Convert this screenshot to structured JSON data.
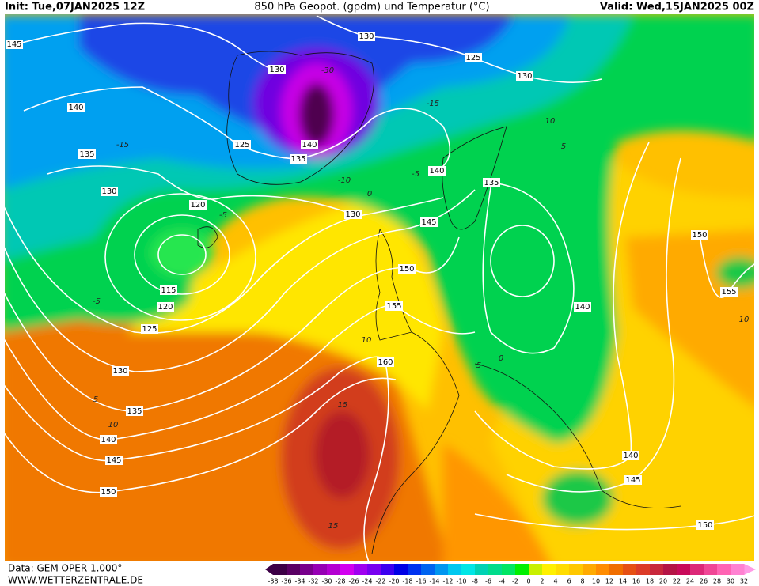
{
  "header": {
    "init": "Init: Tue,07JAN2025 12Z",
    "title": "850 hPa Geopot. (gpdm) und Temperatur (°C)",
    "valid": "Valid: Wed,15JAN2025 00Z"
  },
  "map": {
    "geopotential_labels": [
      145,
      140,
      135,
      130,
      120,
      115,
      120,
      125,
      130,
      135,
      140,
      145,
      150,
      130,
      125,
      140,
      135,
      130,
      125,
      130,
      140,
      135,
      130,
      145,
      150,
      155,
      160,
      140,
      150,
      155,
      140,
      145,
      150
    ],
    "temperature_labels": [
      -30,
      -15,
      -15,
      -10,
      -5,
      -5,
      0,
      5,
      10,
      -5,
      5,
      10,
      10,
      15,
      15,
      10,
      5,
      0
    ]
  },
  "footer": {
    "data": "Data: GEM OPER 1.000°",
    "site": "WWW.WETTERZENTRALE.DE"
  },
  "legend": {
    "labels": [
      -38,
      -36,
      -34,
      -32,
      -30,
      -28,
      -26,
      -24,
      -22,
      -20,
      -18,
      -16,
      -14,
      -12,
      -10,
      -8,
      -6,
      -4,
      -2,
      0,
      2,
      4,
      6,
      8,
      10,
      12,
      14,
      16,
      18,
      20,
      22,
      24,
      26,
      28,
      30,
      32
    ],
    "colors": [
      "#3c0046",
      "#5a0064",
      "#78008c",
      "#9600b4",
      "#b400d2",
      "#d200f0",
      "#a000f0",
      "#7800f0",
      "#3c00f0",
      "#0000e6",
      "#0032f0",
      "#0064f0",
      "#0096f0",
      "#00c8f0",
      "#00e6e6",
      "#00d2b4",
      "#00dc8c",
      "#00e664",
      "#00f000",
      "#c8f000",
      "#fff000",
      "#ffdc00",
      "#ffc800",
      "#ffaa00",
      "#ff8c00",
      "#f06e00",
      "#e65014",
      "#dc3c28",
      "#c8283c",
      "#b41446",
      "#c80a5a",
      "#dc2878",
      "#f04696",
      "#ff64b4",
      "#ff82d2"
    ]
  }
}
